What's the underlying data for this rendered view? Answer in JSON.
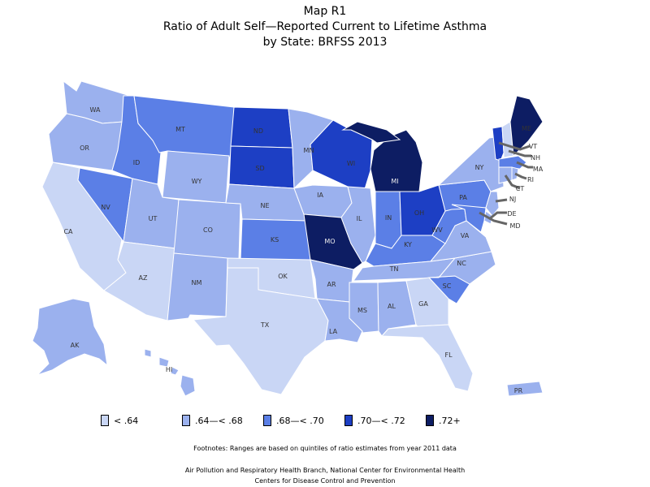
{
  "title": [
    "Map R1",
    "Ratio of Adult Self—Reported Current to Lifetime Asthma",
    "by State: BRFSS 2013"
  ],
  "colors": {
    "c1": "#c9d6f5",
    "c2": "#9bb1ee",
    "c3": "#5b7fe6",
    "c4": "#1d3fc4",
    "c5": "#0d1d63"
  },
  "legend": [
    {
      "label": "< .64",
      "color": "c1"
    },
    {
      "label": ".64—< .68",
      "color": "c2"
    },
    {
      "label": ".68—< .70",
      "color": "c3"
    },
    {
      "label": ".70—< .72",
      "color": "c4"
    },
    {
      "label": ".72+",
      "color": "c5"
    }
  ],
  "states": {
    "WA": "c2",
    "OR": "c2",
    "CA": "c1",
    "NV": "c3",
    "ID": "c3",
    "MT": "c3",
    "WY": "c2",
    "UT": "c2",
    "AZ": "c1",
    "CO": "c2",
    "NM": "c2",
    "ND": "c4",
    "SD": "c4",
    "NE": "c2",
    "KS": "c3",
    "OK": "c1",
    "TX": "c1",
    "MN": "c2",
    "IA": "c2",
    "MO": "c5",
    "AR": "c2",
    "LA": "c2",
    "WI": "c4",
    "IL": "c2",
    "MI": "c5",
    "IN": "c3",
    "OH": "c4",
    "KY": "c3",
    "TN": "c2",
    "MS": "c2",
    "AL": "c2",
    "GA": "c1",
    "FL": "c1",
    "SC": "c3",
    "NC": "c2",
    "VA": "c2",
    "WV": "c3",
    "PA": "c3",
    "NY": "c2",
    "ME": "c5",
    "VT": "c4",
    "NH": "c1",
    "MA": "c3",
    "RI": "c2",
    "CT": "c2",
    "NJ": "c2",
    "DE": "c2",
    "MD": "c3",
    "AK": "c2",
    "HI": "c2",
    "PR": "c2"
  },
  "footnote": "Footnotes: Ranges are based on quintiles of ratio estimates from year 2011 data",
  "source": [
    "Air Pollution and Respiratory Health Branch, National Center for Environmental Health",
    "Centers for Disease Control and Prevention"
  ]
}
